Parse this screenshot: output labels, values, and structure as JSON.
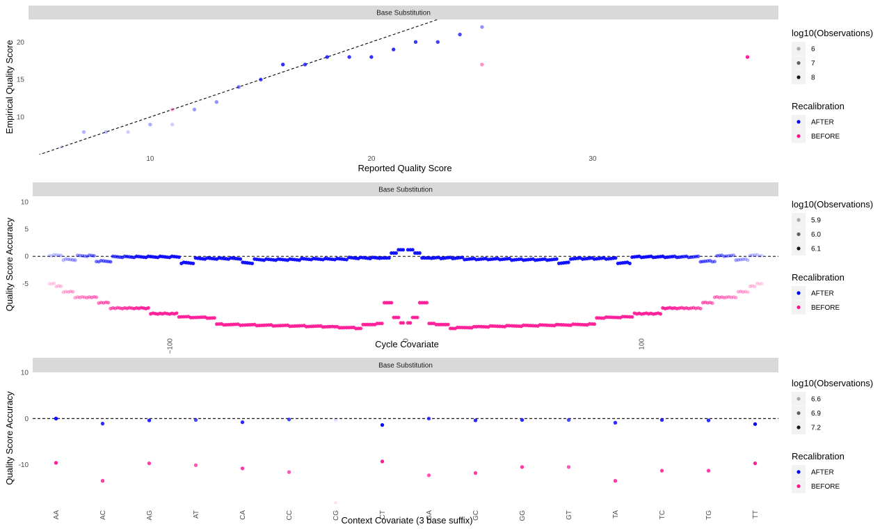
{
  "colors": {
    "after": "#0000FF",
    "before": "#FF1493",
    "strip": "#D9D9D9",
    "legend_key": "#F2F2F2"
  },
  "chart_data": [
    {
      "type": "scatter",
      "strip": "Base Substitution",
      "xlabel": "Reported Quality Score",
      "ylabel": "Empirical Quality Score",
      "xlim": [
        4.5,
        38.4
      ],
      "ylim": [
        5,
        23
      ],
      "xticks": [
        10,
        20,
        30
      ],
      "yticks": [
        10,
        15,
        20
      ],
      "reference_line": {
        "type": "identity"
      },
      "series": [
        {
          "name": "AFTER",
          "points": [
            {
              "x": 6,
              "y": 6,
              "obs": 5.8
            },
            {
              "x": 7,
              "y": 8,
              "obs": 6.3
            },
            {
              "x": 8,
              "y": 8,
              "obs": 6.2
            },
            {
              "x": 9,
              "y": 8,
              "obs": 6.0
            },
            {
              "x": 10,
              "y": 9,
              "obs": 6.4
            },
            {
              "x": 11,
              "y": 9,
              "obs": 6.0
            },
            {
              "x": 12,
              "y": 11,
              "obs": 6.6
            },
            {
              "x": 13,
              "y": 12,
              "obs": 6.7
            },
            {
              "x": 14,
              "y": 14,
              "obs": 7.0
            },
            {
              "x": 15,
              "y": 15,
              "obs": 7.5
            },
            {
              "x": 16,
              "y": 17,
              "obs": 7.8
            },
            {
              "x": 17,
              "y": 17,
              "obs": 7.6
            },
            {
              "x": 18,
              "y": 18,
              "obs": 7.8
            },
            {
              "x": 19,
              "y": 18,
              "obs": 7.7
            },
            {
              "x": 20,
              "y": 18,
              "obs": 7.8
            },
            {
              "x": 21,
              "y": 19,
              "obs": 7.8
            },
            {
              "x": 22,
              "y": 20,
              "obs": 7.7
            },
            {
              "x": 23,
              "y": 20,
              "obs": 7.6
            },
            {
              "x": 24,
              "y": 21,
              "obs": 7.5
            },
            {
              "x": 25,
              "y": 22,
              "obs": 6.7
            }
          ]
        },
        {
          "name": "BEFORE",
          "points": [
            {
              "x": 11,
              "y": 11,
              "obs": 6.5
            },
            {
              "x": 25,
              "y": 17,
              "obs": 6.8
            },
            {
              "x": 37,
              "y": 18,
              "obs": 8.2
            }
          ]
        }
      ],
      "legend": {
        "size_title": "log10(Observations)",
        "size_labels": [
          "6",
          "7",
          "8"
        ],
        "color_title": "Recalibration",
        "color_labels": [
          "AFTER",
          "BEFORE"
        ],
        "position": "right"
      }
    },
    {
      "type": "scatter",
      "strip": "Base Substitution",
      "xlabel": "Cycle Covariate",
      "ylabel": "Quality Score Accuracy",
      "xlim": [
        -158,
        158
      ],
      "ylim": [
        -14,
        11
      ],
      "xticks": [
        -100,
        0,
        100
      ],
      "yticks": [
        -5,
        0,
        5,
        10
      ],
      "xtick_rotation": -90,
      "reference_line": {
        "type": "horizontal",
        "y": 0
      },
      "series": [
        {
          "name": "AFTER",
          "profile": "after-cycle",
          "x_range": [
            -151,
            151
          ]
        },
        {
          "name": "BEFORE",
          "profile": "before-cycle",
          "x_range": [
            -151,
            151
          ]
        }
      ],
      "legend": {
        "size_title": "log10(Observations)",
        "size_labels": [
          "5.9",
          "6.0",
          "6.1"
        ],
        "color_title": "Recalibration",
        "color_labels": [
          "AFTER",
          "BEFORE"
        ],
        "position": "right"
      }
    },
    {
      "type": "scatter",
      "strip": "Base Substitution",
      "xlabel": "Context Covariate (3 base suffix)",
      "ylabel": "Quality Score Accuracy",
      "ylim": [
        -18.5,
        10
      ],
      "yticks": [
        -10,
        0,
        10
      ],
      "categories": [
        "AA",
        "AC",
        "AG",
        "AT",
        "CA",
        "CC",
        "CG",
        "CT",
        "GA",
        "GC",
        "GG",
        "GT",
        "TA",
        "TC",
        "TG",
        "TT"
      ],
      "xtick_rotation": -90,
      "reference_line": {
        "type": "horizontal",
        "y": 0
      },
      "series": [
        {
          "name": "AFTER",
          "values": [
            0.0,
            -1.1,
            -0.4,
            -0.3,
            -0.8,
            -0.2,
            -0.3,
            -1.4,
            0.0,
            -0.4,
            -0.3,
            -0.3,
            -0.9,
            -0.3,
            -0.4,
            -1.2
          ],
          "obs": [
            7.2,
            7.1,
            7.1,
            7.0,
            7.1,
            7.0,
            6.5,
            7.2,
            7.0,
            7.1,
            7.1,
            7.0,
            7.1,
            7.1,
            7.1,
            7.2
          ]
        },
        {
          "name": "BEFORE",
          "values": [
            -9.6,
            -13.5,
            -9.7,
            -10.1,
            -10.8,
            -11.6,
            -18.3,
            -9.3,
            -12.3,
            -11.8,
            -10.5,
            -10.5,
            -13.5,
            -11.3,
            -11.3,
            -9.7
          ],
          "obs": [
            7.2,
            7.1,
            7.1,
            7.0,
            7.1,
            7.0,
            6.5,
            7.2,
            7.0,
            7.1,
            7.1,
            7.0,
            7.1,
            7.1,
            7.1,
            7.2
          ]
        }
      ],
      "legend": {
        "size_title": "log10(Observations)",
        "size_labels": [
          "6.6",
          "6.9",
          "7.2"
        ],
        "color_title": "Recalibration",
        "color_labels": [
          "AFTER",
          "BEFORE"
        ],
        "position": "right"
      }
    }
  ]
}
